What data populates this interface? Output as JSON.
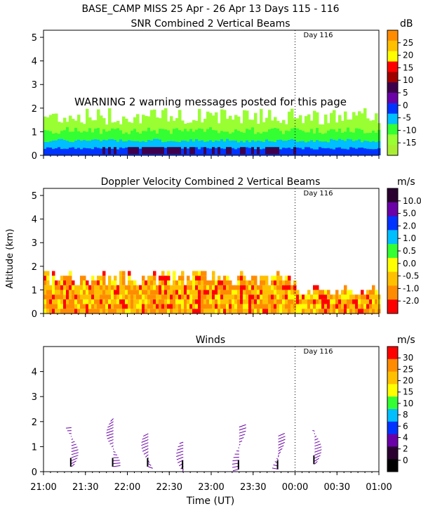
{
  "header": {
    "title": "BASE_CAMP MISS  25 Apr - 26 Apr 13 Days 115 - 116"
  },
  "axes": {
    "x_ticks": [
      "21:00",
      "21:30",
      "22:00",
      "22:30",
      "23:00",
      "23:30",
      "00:00",
      "00:30",
      "01:00"
    ],
    "xlabel": "Time (UT)",
    "ylabel": "Altitude (km)",
    "day_marker": "Day 116"
  },
  "warning": {
    "text": "WARNING  2 warning messages posted for this page"
  },
  "chart_data": [
    {
      "type": "heatmap",
      "title": "SNR Combined 2 Vertical Beams",
      "units": "dB",
      "ylim": [
        0,
        5.3
      ],
      "yticks": [
        "0",
        "1",
        "2",
        "3",
        "4",
        "5"
      ],
      "colorbar": {
        "labels": [
          "25",
          "20",
          "15",
          "10",
          "5",
          "0",
          "-5",
          "-10",
          "-15"
        ],
        "colors": [
          "#ff8c00",
          "#ffc000",
          "#ffff00",
          "#ff0000",
          "#a00000",
          "#3d004d",
          "#6a00a8",
          "#0033ff",
          "#00bfff",
          "#33ff33",
          "#99ff33",
          "#aaee33"
        ]
      },
      "summary": "SNR band mostly -5 to -15 dB from 0 to ~2 km; strongest returns (blue/purple) below 0.6 km"
    },
    {
      "type": "heatmap",
      "title": "Doppler Velocity Combined 2 Vertical Beams",
      "units": "m/s",
      "ylim": [
        0,
        5.3
      ],
      "yticks": [
        "0",
        "1",
        "2",
        "3",
        "4",
        "5"
      ],
      "colorbar": {
        "labels": [
          "10.0",
          "5.0",
          "2.0",
          "1.0",
          "0.5",
          "0.0",
          "-0.5",
          "-1.0",
          "-2.0"
        ],
        "colors": [
          "#2a0030",
          "#6a00a8",
          "#0033ff",
          "#00bfff",
          "#33ff33",
          "#ffff00",
          "#ffc000",
          "#ff8c00",
          "#ff0000"
        ]
      },
      "summary": "Mostly -0.5 to -2.0 m/s (orange/red) below ~1.6 km"
    },
    {
      "type": "scatter",
      "title": "Winds",
      "units": "m/s",
      "ylim": [
        0,
        5
      ],
      "yticks": [
        "0",
        "1",
        "2",
        "3",
        "4"
      ],
      "colorbar": {
        "labels": [
          "30",
          "25",
          "20",
          "15",
          "10",
          "8",
          "6",
          "4",
          "2",
          "0"
        ],
        "colors": [
          "#ff0000",
          "#ff8c00",
          "#ffc000",
          "#ffff00",
          "#33ff33",
          "#00bfff",
          "#0033ff",
          "#6a00a8",
          "#2a0030",
          "#000000"
        ]
      },
      "profiles": [
        {
          "time": "21:20",
          "alt_min": 0.2,
          "alt_max": 1.8
        },
        {
          "time": "21:50",
          "alt_min": 0.2,
          "alt_max": 2.2
        },
        {
          "time": "22:15",
          "alt_min": 0.2,
          "alt_max": 1.6
        },
        {
          "time": "22:40",
          "alt_min": 0.1,
          "alt_max": 1.2
        },
        {
          "time": "23:20",
          "alt_min": 0.1,
          "alt_max": 1.8
        },
        {
          "time": "23:48",
          "alt_min": 0.1,
          "alt_max": 1.5
        },
        {
          "time": "00:14",
          "alt_min": 0.3,
          "alt_max": 1.7
        }
      ]
    }
  ]
}
